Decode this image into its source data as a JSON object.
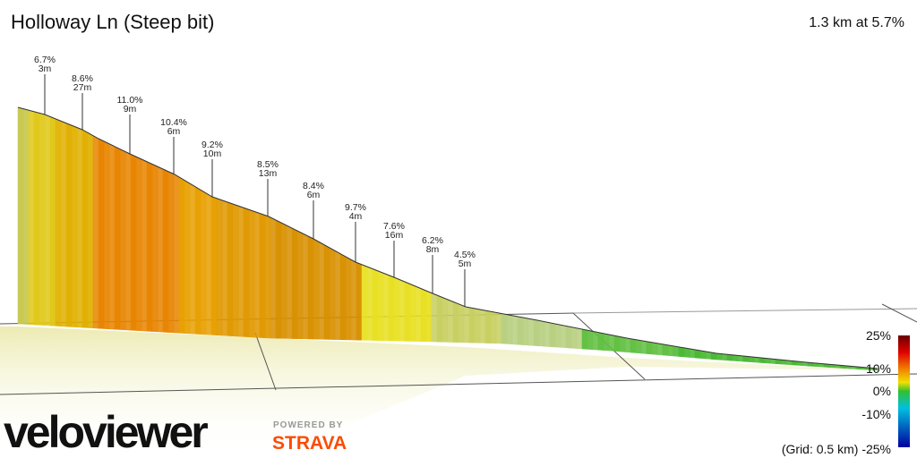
{
  "header": {
    "title": "Holloway Ln (Steep bit)",
    "summary": "1.3 km at 5.7%"
  },
  "annotations": [
    {
      "gradient": "6.7%",
      "length": "3m"
    },
    {
      "gradient": "8.6%",
      "length": "27m"
    },
    {
      "gradient": "11.0%",
      "length": "9m"
    },
    {
      "gradient": "10.4%",
      "length": "6m"
    },
    {
      "gradient": "9.2%",
      "length": "10m"
    },
    {
      "gradient": "8.5%",
      "length": "13m"
    },
    {
      "gradient": "8.4%",
      "length": "6m"
    },
    {
      "gradient": "9.7%",
      "length": "4m"
    },
    {
      "gradient": "7.6%",
      "length": "16m"
    },
    {
      "gradient": "6.2%",
      "length": "8m"
    },
    {
      "gradient": "4.5%",
      "length": "5m"
    }
  ],
  "legend": {
    "labels": [
      "25%",
      "10%",
      "0%",
      "-10%"
    ],
    "grid_note": "(Grid: 0.5 km) -25%"
  },
  "branding": {
    "logo": "veloviewer",
    "powered_by": "POWERED BY",
    "strava": "STRAVA"
  }
}
